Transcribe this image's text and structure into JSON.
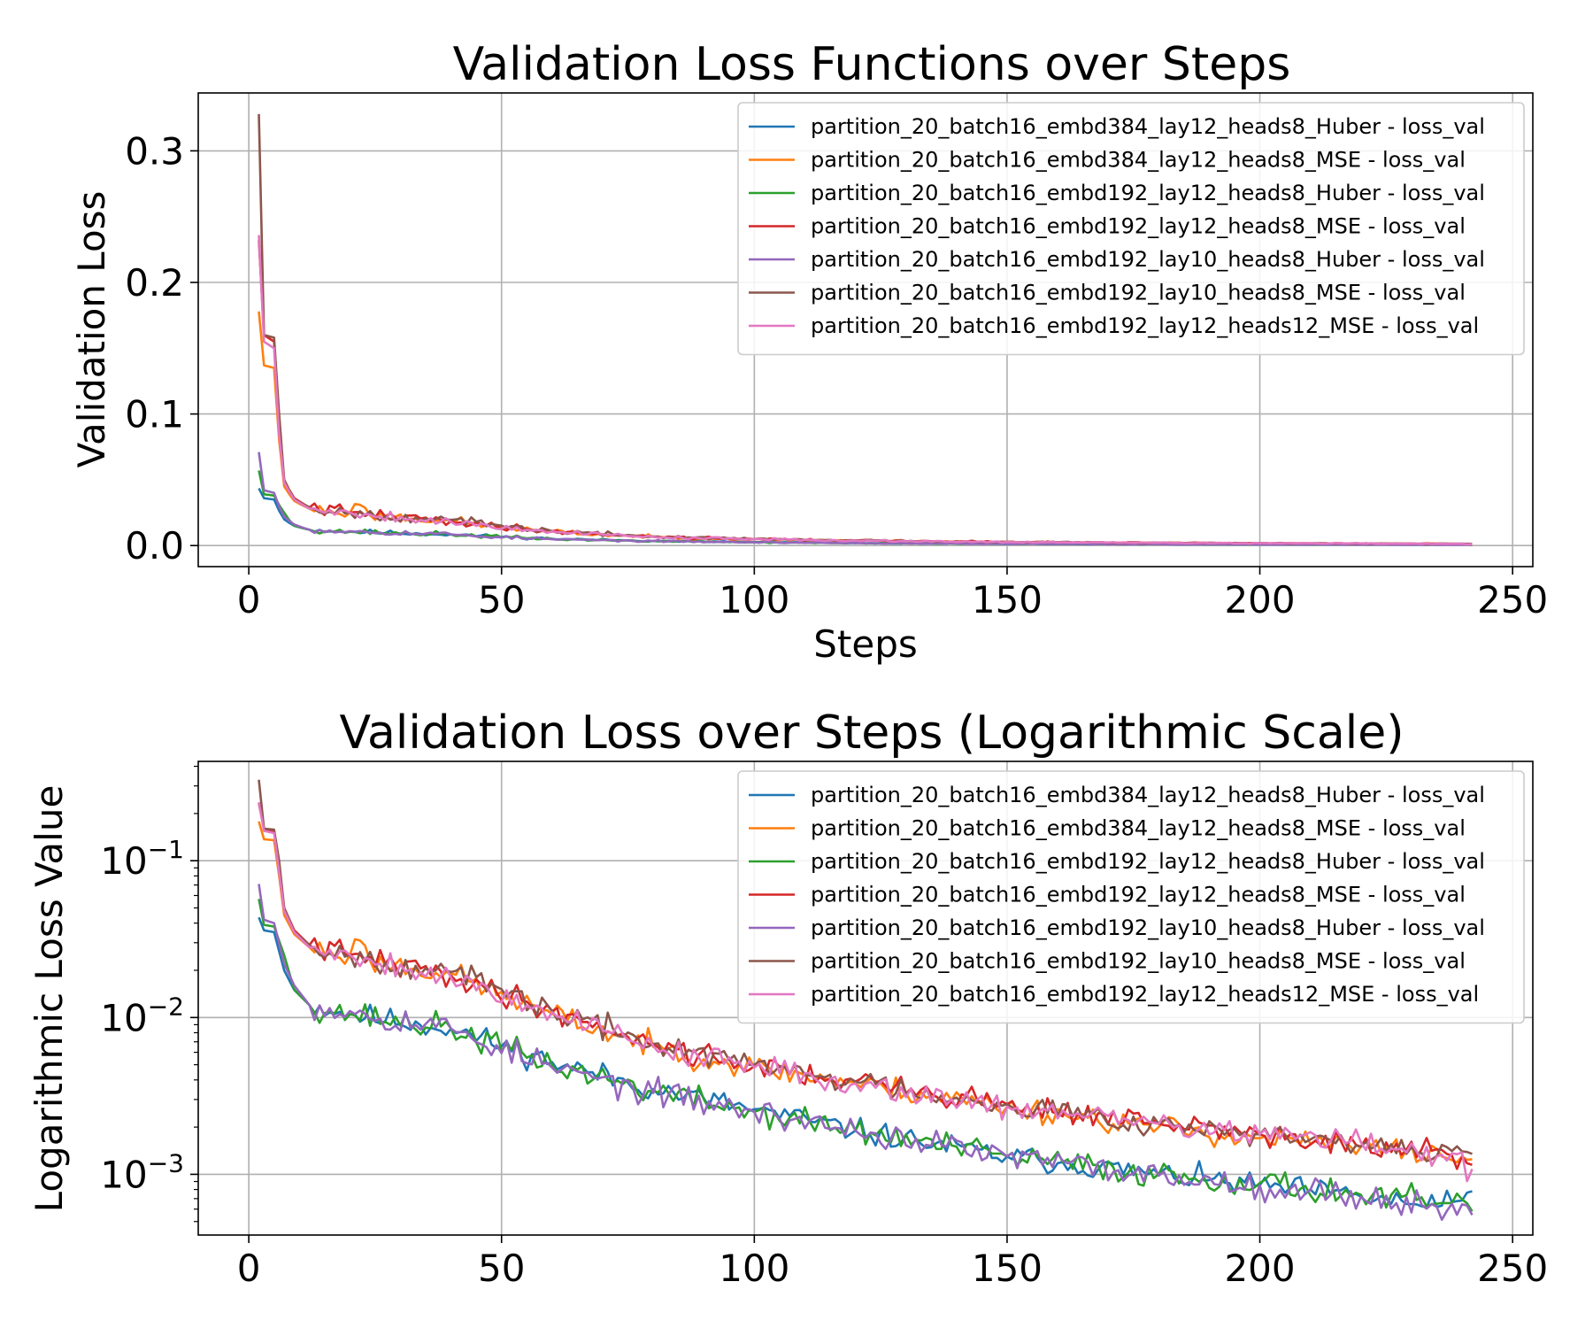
{
  "chart_data": [
    {
      "type": "line",
      "title": "Validation Loss Functions over Steps",
      "xlabel": "Steps",
      "ylabel": "Validation Loss",
      "xlim": [
        -10,
        254
      ],
      "ylim": [
        -0.016,
        0.344
      ],
      "y_scale": "linear",
      "xticks": [
        0,
        50,
        100,
        150,
        200,
        250
      ],
      "yticks": [
        0.0,
        0.1,
        0.2,
        0.3
      ],
      "ytick_labels": [
        "0.0",
        "0.1",
        "0.2",
        "0.3"
      ],
      "grid": true,
      "legend": "top-right",
      "series_ref": "shared"
    },
    {
      "type": "line",
      "title": "Validation Loss over Steps (Logarithmic Scale)",
      "xlabel": "",
      "ylabel": "Logarithmic Loss Value",
      "xlim": [
        -10,
        254
      ],
      "ylim": [
        0.00041,
        0.43
      ],
      "y_scale": "log",
      "xticks": [
        0,
        50,
        100,
        150,
        200,
        250
      ],
      "yticks": [
        0.001,
        0.01,
        0.1
      ],
      "ytick_labels": [
        "10^-3",
        "10^-2",
        "10^-1"
      ],
      "grid": true,
      "legend": "top-right",
      "series_ref": "shared"
    }
  ],
  "x_range": [
    2,
    242
  ],
  "series": [
    {
      "name": "partition_20_batch16_embd384_lay12_heads8_Huber - loss_val",
      "color": "#1f77b4",
      "anchors": [
        [
          2,
          0.0435
        ],
        [
          3,
          0.036
        ],
        [
          5,
          0.035
        ],
        [
          7,
          0.02
        ],
        [
          9,
          0.015
        ],
        [
          12,
          0.012
        ],
        [
          20,
          0.0105
        ],
        [
          40,
          0.0085
        ],
        [
          60,
          0.0052
        ],
        [
          80,
          0.0035
        ],
        [
          100,
          0.0026
        ],
        [
          120,
          0.0019
        ],
        [
          150,
          0.0013
        ],
        [
          180,
          0.001
        ],
        [
          200,
          0.00085
        ],
        [
          220,
          0.00072
        ],
        [
          235,
          0.00062
        ],
        [
          240,
          0.00068
        ],
        [
          242,
          0.00078
        ]
      ],
      "noise": 0.09,
      "seed": 11
    },
    {
      "name": "partition_20_batch16_embd384_lay12_heads8_MSE - loss_val",
      "color": "#ff7f0e",
      "anchors": [
        [
          2,
          0.178
        ],
        [
          3,
          0.137
        ],
        [
          5,
          0.135
        ],
        [
          6,
          0.08
        ],
        [
          7,
          0.045
        ],
        [
          9,
          0.034
        ],
        [
          12,
          0.028
        ],
        [
          20,
          0.025
        ],
        [
          22,
          0.031
        ],
        [
          24,
          0.023
        ],
        [
          40,
          0.019
        ],
        [
          60,
          0.0105
        ],
        [
          80,
          0.0065
        ],
        [
          100,
          0.0048
        ],
        [
          120,
          0.0038
        ],
        [
          150,
          0.0027
        ],
        [
          180,
          0.002
        ],
        [
          200,
          0.0017
        ],
        [
          220,
          0.0015
        ],
        [
          240,
          0.0013
        ],
        [
          242,
          0.00125
        ]
      ],
      "noise": 0.09,
      "seed": 23
    },
    {
      "name": "partition_20_batch16_embd192_lay12_heads8_Huber - loss_val",
      "color": "#2ca02c",
      "anchors": [
        [
          2,
          0.057
        ],
        [
          3,
          0.039
        ],
        [
          5,
          0.038
        ],
        [
          7,
          0.025
        ],
        [
          9,
          0.015
        ],
        [
          12,
          0.012
        ],
        [
          20,
          0.0105
        ],
        [
          40,
          0.0085
        ],
        [
          60,
          0.005
        ],
        [
          80,
          0.0034
        ],
        [
          100,
          0.0025
        ],
        [
          120,
          0.0019
        ],
        [
          150,
          0.0013
        ],
        [
          180,
          0.001
        ],
        [
          200,
          0.00088
        ],
        [
          220,
          0.00074
        ],
        [
          235,
          0.00065
        ],
        [
          242,
          0.00058
        ]
      ],
      "noise": 0.1,
      "seed": 37
    },
    {
      "name": "partition_20_batch16_embd192_lay12_heads8_MSE - loss_val",
      "color": "#d62728",
      "anchors": [
        [
          2,
          0.232
        ],
        [
          3,
          0.16
        ],
        [
          5,
          0.155
        ],
        [
          6,
          0.09
        ],
        [
          7,
          0.05
        ],
        [
          9,
          0.036
        ],
        [
          12,
          0.029
        ],
        [
          20,
          0.025
        ],
        [
          40,
          0.0185
        ],
        [
          60,
          0.011
        ],
        [
          80,
          0.0068
        ],
        [
          100,
          0.0049
        ],
        [
          120,
          0.0039
        ],
        [
          150,
          0.0028
        ],
        [
          180,
          0.0021
        ],
        [
          200,
          0.0018
        ],
        [
          220,
          0.0015
        ],
        [
          240,
          0.0013
        ],
        [
          242,
          0.00115
        ]
      ],
      "noise": 0.09,
      "seed": 41
    },
    {
      "name": "partition_20_batch16_embd192_lay10_heads8_Huber - loss_val",
      "color": "#9467bd",
      "anchors": [
        [
          2,
          0.071
        ],
        [
          3,
          0.042
        ],
        [
          5,
          0.04
        ],
        [
          7,
          0.022
        ],
        [
          9,
          0.016
        ],
        [
          12,
          0.012
        ],
        [
          20,
          0.011
        ],
        [
          40,
          0.0085
        ],
        [
          60,
          0.0048
        ],
        [
          80,
          0.0033
        ],
        [
          100,
          0.0025
        ],
        [
          120,
          0.0019
        ],
        [
          150,
          0.0013
        ],
        [
          180,
          0.00098
        ],
        [
          200,
          0.00085
        ],
        [
          220,
          0.00072
        ],
        [
          235,
          0.00062
        ],
        [
          242,
          0.00055
        ]
      ],
      "noise": 0.1,
      "seed": 53
    },
    {
      "name": "partition_20_batch16_embd192_lay10_heads8_MSE - loss_val",
      "color": "#8c564b",
      "anchors": [
        [
          2,
          0.328
        ],
        [
          3,
          0.16
        ],
        [
          5,
          0.158
        ],
        [
          6,
          0.1
        ],
        [
          7,
          0.05
        ],
        [
          9,
          0.035
        ],
        [
          12,
          0.029
        ],
        [
          20,
          0.025
        ],
        [
          40,
          0.0195
        ],
        [
          60,
          0.011
        ],
        [
          80,
          0.0068
        ],
        [
          100,
          0.005
        ],
        [
          120,
          0.0039
        ],
        [
          150,
          0.0028
        ],
        [
          180,
          0.0021
        ],
        [
          200,
          0.0018
        ],
        [
          220,
          0.0015
        ],
        [
          240,
          0.0014
        ],
        [
          242,
          0.00135
        ]
      ],
      "noise": 0.09,
      "seed": 67
    },
    {
      "name": "partition_20_batch16_embd192_lay12_heads12_MSE - loss_val",
      "color": "#e377c2",
      "anchors": [
        [
          2,
          0.236
        ],
        [
          3,
          0.155
        ],
        [
          5,
          0.15
        ],
        [
          6,
          0.085
        ],
        [
          7,
          0.048
        ],
        [
          9,
          0.035
        ],
        [
          12,
          0.028
        ],
        [
          20,
          0.025
        ],
        [
          40,
          0.018
        ],
        [
          60,
          0.0108
        ],
        [
          80,
          0.0066
        ],
        [
          100,
          0.0048
        ],
        [
          120,
          0.0038
        ],
        [
          150,
          0.0027
        ],
        [
          180,
          0.0021
        ],
        [
          200,
          0.0018
        ],
        [
          220,
          0.0016
        ],
        [
          235,
          0.0013
        ],
        [
          242,
          0.00108
        ]
      ],
      "noise": 0.09,
      "seed": 79
    }
  ]
}
